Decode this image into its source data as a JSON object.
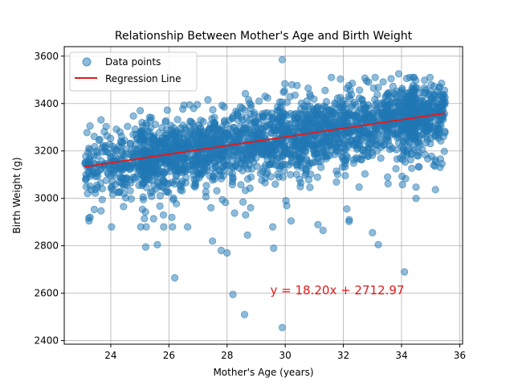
{
  "chart_data": {
    "type": "scatter",
    "title": "Relationship Between Mother's Age and Birth Weight",
    "xlabel": "Mother's Age (years)",
    "ylabel": "Birth Weight (g)",
    "xlim": [
      22.4,
      36.1
    ],
    "ylim": [
      2385,
      3640
    ],
    "xticks": [
      24,
      26,
      28,
      30,
      32,
      34,
      36
    ],
    "yticks": [
      2400,
      2600,
      2800,
      3000,
      3200,
      3400,
      3600
    ],
    "grid": true,
    "legend_position": "top-left",
    "legend": [
      "Data points",
      "Regression Line"
    ],
    "point_color": "#1f77b4",
    "line_color": "#e31a1c",
    "regression": {
      "slope": 18.2,
      "intercept": 2712.97,
      "x_range": [
        23.1,
        35.5
      ],
      "equation_label": "y = 18.20x + 2712.97"
    },
    "x_range": [
      23.1,
      35.5
    ],
    "approx_point_count": 2500,
    "outliers": [
      {
        "x": 29.9,
        "y": 3585
      },
      {
        "x": 33.9,
        "y": 3525
      },
      {
        "x": 25.2,
        "y": 2795
      },
      {
        "x": 25.6,
        "y": 2805
      },
      {
        "x": 26.2,
        "y": 2665
      },
      {
        "x": 28.2,
        "y": 2595
      },
      {
        "x": 28.6,
        "y": 2510
      },
      {
        "x": 29.9,
        "y": 2455
      },
      {
        "x": 34.1,
        "y": 2690
      },
      {
        "x": 33.2,
        "y": 2805
      },
      {
        "x": 32.2,
        "y": 2910
      },
      {
        "x": 33.0,
        "y": 2855
      },
      {
        "x": 31.3,
        "y": 2865
      },
      {
        "x": 27.8,
        "y": 2780
      },
      {
        "x": 28.0,
        "y": 2770
      },
      {
        "x": 29.6,
        "y": 2790
      },
      {
        "x": 26.1,
        "y": 2920
      },
      {
        "x": 27.5,
        "y": 2820
      },
      {
        "x": 28.7,
        "y": 2845
      },
      {
        "x": 30.2,
        "y": 2905
      }
    ]
  }
}
